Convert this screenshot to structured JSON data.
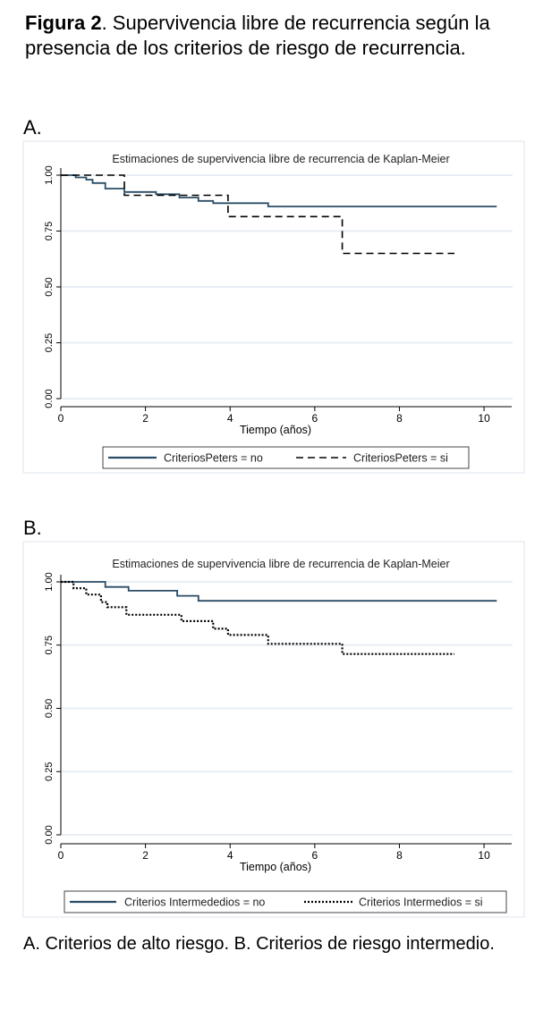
{
  "caption": {
    "bold": "Figura 2",
    "rest": ". Supervivencia libre de recurrencia según la presencia de los criterios de riesgo de recurrencia."
  },
  "footnote": "A. Criterios de alto riesgo. B. Criterios de riesgo intermedio.",
  "colors": {
    "series_no": "#2a4c66",
    "series_si": "#000000",
    "grid": "#e8eef3",
    "frame": "#dde6ec"
  },
  "chart_data": [
    {
      "panel_label": "A.",
      "type": "line",
      "step": true,
      "title": "Estimaciones de supervivencia libre de recurrencia de Kaplan-Meier",
      "xlabel": "Tiempo (años)",
      "ylabel": "",
      "xlim": [
        0,
        10.4
      ],
      "ylim": [
        0,
        1
      ],
      "xticks": [
        "0",
        "2",
        "4",
        "6",
        "8",
        "10"
      ],
      "yticks": [
        "0.00",
        "0.25",
        "0.50",
        "0.75",
        "1.00"
      ],
      "grid": true,
      "legend_position": "bottom",
      "series": [
        {
          "name": "CriteriosPeters = no",
          "style": "solid",
          "x": [
            0,
            0.35,
            0.6,
            0.75,
            1.05,
            1.5,
            2.25,
            2.8,
            3.25,
            3.6,
            4.9,
            10.3
          ],
          "y": [
            1.0,
            0.99,
            0.98,
            0.965,
            0.94,
            0.925,
            0.915,
            0.9,
            0.885,
            0.875,
            0.86,
            0.86
          ]
        },
        {
          "name": "CriteriosPeters = si",
          "style": "dashed",
          "x": [
            0,
            1.5,
            3.95,
            6.65,
            9.3
          ],
          "y": [
            1.0,
            0.91,
            0.815,
            0.65,
            0.65
          ]
        }
      ]
    },
    {
      "panel_label": "B.",
      "type": "line",
      "step": true,
      "title": "Estimaciones de supervivencia libre de recurrencia de Kaplan-Meier",
      "xlabel": "Tiempo (años)",
      "ylabel": "",
      "xlim": [
        0,
        10.4
      ],
      "ylim": [
        0,
        1
      ],
      "xticks": [
        "0",
        "2",
        "4",
        "6",
        "8",
        "10"
      ],
      "yticks": [
        "0.00",
        "0.25",
        "0.50",
        "0.75",
        "1.00"
      ],
      "grid": true,
      "legend_position": "bottom",
      "series": [
        {
          "name": "Criterios Intermededios = no",
          "style": "solid",
          "x": [
            0,
            1.05,
            1.6,
            2.75,
            3.25,
            10.3
          ],
          "y": [
            1.0,
            0.98,
            0.965,
            0.945,
            0.925,
            0.925
          ]
        },
        {
          "name": "Criterios Intermedios = si",
          "style": "dotted",
          "x": [
            0,
            0.3,
            0.6,
            0.95,
            1.1,
            1.55,
            2.85,
            3.6,
            3.95,
            4.9,
            6.65,
            9.3
          ],
          "y": [
            1.0,
            0.975,
            0.95,
            0.92,
            0.9,
            0.87,
            0.845,
            0.815,
            0.79,
            0.755,
            0.715,
            0.715
          ]
        }
      ]
    }
  ]
}
